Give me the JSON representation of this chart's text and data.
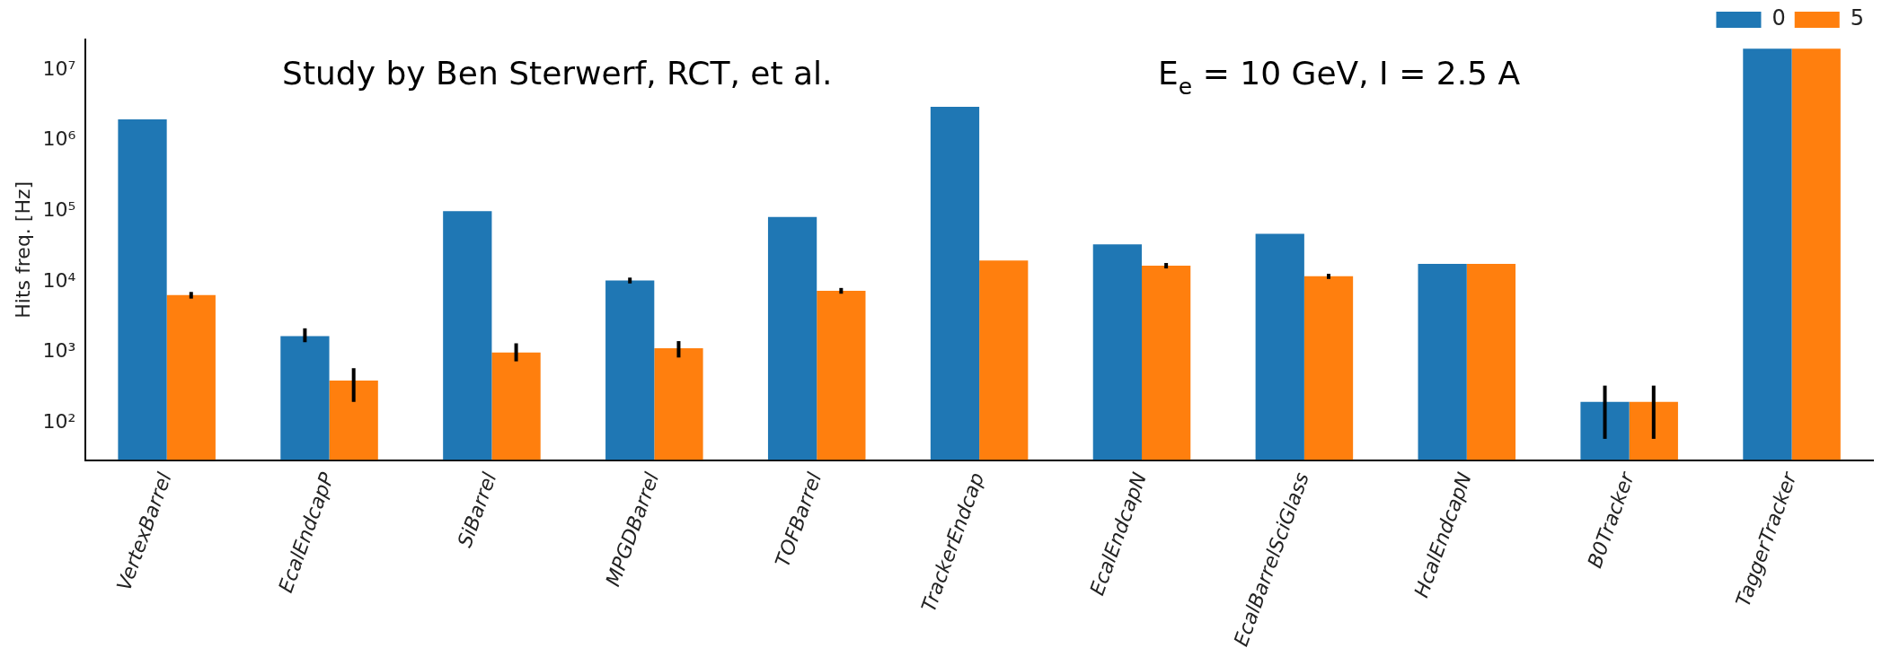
{
  "chart_data": {
    "type": "bar",
    "ylabel": "Hits freq. [Hz]",
    "annotations": [
      "Study by Ben Sterwerf, RCT, et al.",
      "E$_{e}$ = 10 GeV, I = 2.5 A"
    ],
    "categories": [
      "VertexBarrel",
      "EcalEndcapP",
      "SiBarrel",
      "MPGDBarrel",
      "TOFBarrel",
      "TrackerEndcap",
      "EcalEndcapN",
      "EcalBarrelSciGlass",
      "HcalEndcapN",
      "B0Tracker",
      "TaggerTracker"
    ],
    "series": [
      {
        "name": "0",
        "color": "#1f77b4",
        "values": [
          2000000,
          1700,
          100000,
          10500,
          83000,
          3000000,
          34000,
          48000,
          18000,
          200,
          20000000
        ],
        "errors": [
          null,
          [
            1400,
            2200
          ],
          null,
          [
            9500,
            11500
          ],
          null,
          null,
          null,
          null,
          null,
          [
            60,
            340
          ],
          null
        ]
      },
      {
        "name": "5",
        "color": "#ff7f0e",
        "values": [
          6500,
          400,
          1000,
          1150,
          7500,
          20000,
          17000,
          12000,
          18000,
          200,
          20000000
        ],
        "errors": [
          [
            5800,
            7200
          ],
          [
            200,
            600
          ],
          [
            750,
            1350
          ],
          [
            850,
            1450
          ],
          [
            6800,
            8200
          ],
          null,
          [
            15500,
            18500
          ],
          [
            11000,
            13000
          ],
          null,
          [
            60,
            340
          ],
          null
        ]
      }
    ],
    "log": "y",
    "ylim": [
      30,
      27000000
    ],
    "yticks": [
      {
        "value": 100,
        "label": "10²"
      },
      {
        "value": 1000,
        "label": "10³"
      },
      {
        "value": 10000,
        "label": "10⁴"
      },
      {
        "value": 100000,
        "label": "10⁵"
      },
      {
        "value": 1000000,
        "label": "10⁶"
      },
      {
        "value": 10000000,
        "label": "10⁷"
      }
    ],
    "grid": false,
    "legend": "top right"
  }
}
